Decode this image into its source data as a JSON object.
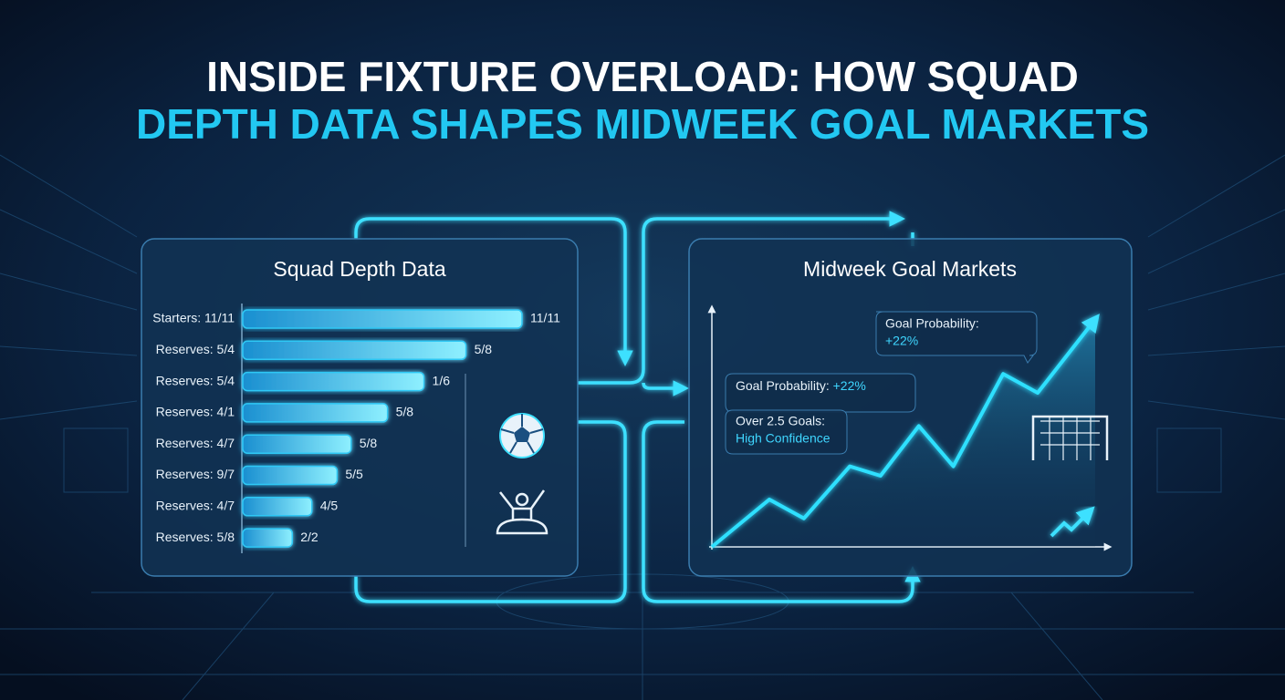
{
  "header": {
    "title_line1": "INSIDE FIXTURE OVERLOAD: HOW SQUAD",
    "title_line2": "DEPTH DATA SHAPES MIDWEEK GOAL MARKETS"
  },
  "chart_data": [
    {
      "type": "bar",
      "orientation": "horizontal",
      "title": "Squad Depth Data",
      "categories": [
        "Starters: 11/11",
        "Reserves: 5/4",
        "Reserves: 5/4",
        "Reserves: 4/1",
        "Reserves: 4/7",
        "Reserves: 9/7",
        "Reserves: 4/7",
        "Reserves: 5/8"
      ],
      "values": [
        100,
        80,
        65,
        52,
        39,
        34,
        25,
        18
      ],
      "end_labels": [
        "11/11",
        "5/8",
        "1/6",
        "5/8",
        "5/8",
        "5/5",
        "4/5",
        "2/2"
      ],
      "xlim": [
        0,
        100
      ],
      "color": "#2ec8f5"
    },
    {
      "type": "line",
      "title": "Midweek Goal Markets",
      "x": [
        0,
        15,
        24,
        36,
        44,
        54,
        63,
        76,
        85,
        100
      ],
      "values": [
        0,
        20,
        12,
        34,
        30,
        51,
        34,
        73,
        65,
        96
      ],
      "xlim": [
        0,
        100
      ],
      "ylim": [
        0,
        100
      ],
      "color": "#2ee0ff",
      "annotations": [
        {
          "label": "Goal Probability:",
          "value": "+22%"
        },
        {
          "label": "Goal Probability:",
          "value": "+22%"
        },
        {
          "label": "Over 2.5 Goals:",
          "value": "High Confidence"
        }
      ]
    }
  ]
}
